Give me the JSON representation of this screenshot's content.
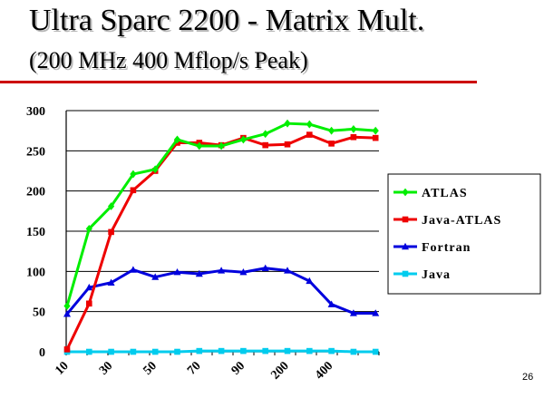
{
  "slide": {
    "title": "Ultra Sparc 2200 - Matrix Mult.",
    "subtitle": "(200 MHz 400 Mflop/s Peak)",
    "page_number": "26"
  },
  "colors": {
    "accent_rule": "#cc0000"
  },
  "chart_data": {
    "type": "line",
    "title": "",
    "xlabel": "",
    "ylabel": "",
    "ylim": [
      0,
      300
    ],
    "yticks": [
      0,
      50,
      100,
      150,
      200,
      250,
      300
    ],
    "grid": "horizontal",
    "legend_position": "right",
    "x": [
      "10",
      "20",
      "30",
      "40",
      "50",
      "60",
      "70",
      "80",
      "90",
      "100",
      "200",
      "300",
      "400",
      "500",
      "600"
    ],
    "x_tick_labels": [
      "10",
      "30",
      "50",
      "70",
      "90",
      "200",
      "400"
    ],
    "series": [
      {
        "name": "ATLAS",
        "color": "#00ee00",
        "marker": "diamond",
        "values": [
          57,
          153,
          181,
          221,
          227,
          264,
          256,
          256,
          264,
          271,
          284,
          283,
          275,
          277,
          275
        ]
      },
      {
        "name": "Java-ATLAS",
        "color": "#ee0000",
        "marker": "square",
        "values": [
          3,
          60,
          149,
          201,
          225,
          260,
          260,
          257,
          266,
          257,
          258,
          270,
          259,
          267,
          266
        ]
      },
      {
        "name": "Fortran",
        "color": "#0000dd",
        "marker": "triangle",
        "values": [
          47,
          80,
          86,
          102,
          93,
          99,
          97,
          101,
          99,
          104,
          101,
          88,
          59,
          48,
          48
        ]
      },
      {
        "name": "Java",
        "color": "#00ccee",
        "marker": "square",
        "values": [
          0,
          0,
          0,
          0,
          0,
          0,
          1,
          1,
          1,
          1,
          1,
          1,
          1,
          0,
          0
        ]
      }
    ]
  }
}
